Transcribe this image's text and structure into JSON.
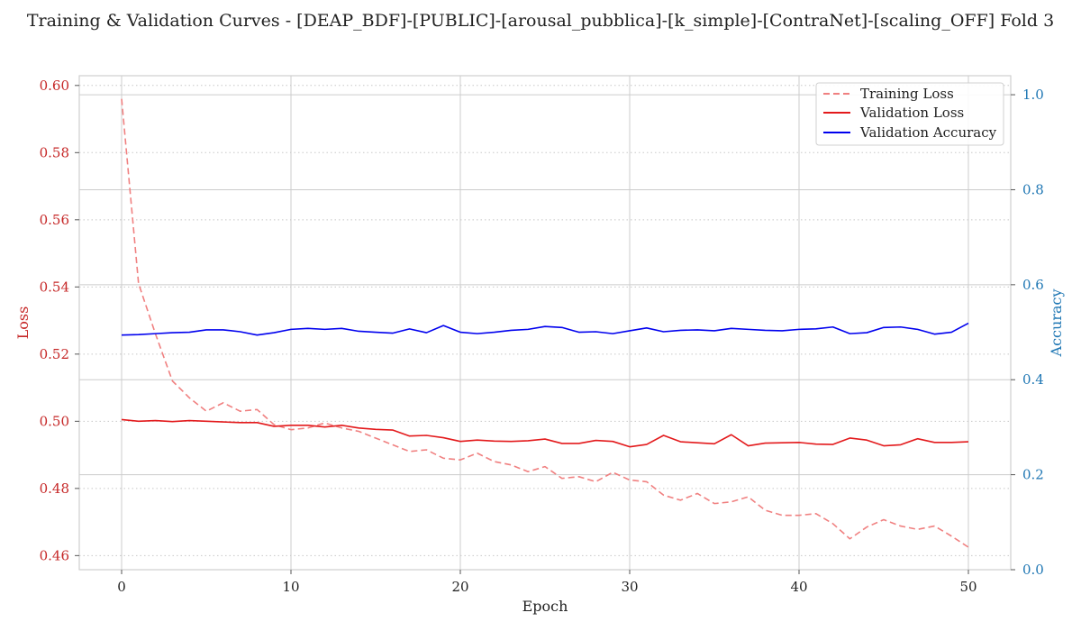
{
  "chart_data": {
    "type": "line",
    "title": "Training & Validation Curves - [DEAP_BDF]-[PUBLIC]-[arousal_pubblica]-[k_simple]-[ContraNet]-[scaling_OFF] Fold 3",
    "xlabel": "Epoch",
    "ylabel_left": "Loss",
    "ylabel_right": "Accuracy",
    "xlim": [
      -2.5,
      52.5
    ],
    "ylim_left": [
      0.4558,
      0.6029
    ],
    "ylim_right": [
      0.0,
      1.04
    ],
    "x_ticks": [
      0,
      10,
      20,
      30,
      40,
      50
    ],
    "y_left_ticks": [
      0.46,
      0.48,
      0.5,
      0.52,
      0.54,
      0.56,
      0.58,
      0.6
    ],
    "y_left_tick_labels": [
      "0.46",
      "0.48",
      "0.50",
      "0.52",
      "0.54",
      "0.56",
      "0.58",
      "0.60"
    ],
    "y_right_ticks": [
      0.0,
      0.2,
      0.4,
      0.6,
      0.8,
      1.0
    ],
    "y_right_tick_labels": [
      "0.0",
      "0.2",
      "0.4",
      "0.6",
      "0.8",
      "1.0"
    ],
    "legend_position": "top-right",
    "grid": true,
    "colors": {
      "training_loss": "#f08080",
      "validation_loss": "#e31a1c",
      "validation_accuracy": "#0000ee",
      "left_axis": "#c62828",
      "right_axis": "#1f77b4"
    },
    "x": [
      0,
      1,
      2,
      3,
      4,
      5,
      6,
      7,
      8,
      9,
      10,
      11,
      12,
      13,
      14,
      15,
      16,
      17,
      18,
      19,
      20,
      21,
      22,
      23,
      24,
      25,
      26,
      27,
      28,
      29,
      30,
      31,
      32,
      33,
      34,
      35,
      36,
      37,
      38,
      39,
      40,
      41,
      42,
      43,
      44,
      45,
      46,
      47,
      48,
      49,
      50
    ],
    "series": [
      {
        "name": "Training Loss",
        "axis": "left",
        "style": "dashed",
        "values": [
          0.596,
          0.541,
          0.526,
          0.512,
          0.507,
          0.503,
          0.5055,
          0.503,
          0.5035,
          0.499,
          0.4975,
          0.498,
          0.4995,
          0.498,
          0.497,
          0.495,
          0.493,
          0.491,
          0.4915,
          0.489,
          0.4885,
          0.4905,
          0.488,
          0.487,
          0.485,
          0.4865,
          0.483,
          0.4835,
          0.482,
          0.4848,
          0.4825,
          0.482,
          0.478,
          0.4765,
          0.4785,
          0.4755,
          0.476,
          0.4775,
          0.4735,
          0.472,
          0.472,
          0.4725,
          0.4695,
          0.465,
          0.4685,
          0.4707,
          0.4688,
          0.4678,
          0.4688,
          0.4658,
          0.4625
        ]
      },
      {
        "name": "Validation Loss",
        "axis": "left",
        "style": "solid",
        "values": [
          0.5005,
          0.5,
          0.5002,
          0.4999,
          0.5002,
          0.5,
          0.4998,
          0.4996,
          0.4996,
          0.4985,
          0.4988,
          0.4988,
          0.4983,
          0.4988,
          0.498,
          0.4976,
          0.4974,
          0.4956,
          0.4958,
          0.4951,
          0.494,
          0.4944,
          0.4941,
          0.494,
          0.4942,
          0.4947,
          0.4934,
          0.4934,
          0.4943,
          0.494,
          0.4924,
          0.4931,
          0.4958,
          0.4939,
          0.4936,
          0.4933,
          0.496,
          0.4927,
          0.4935,
          0.4936,
          0.4937,
          0.4932,
          0.4931,
          0.495,
          0.4944,
          0.4927,
          0.493,
          0.4948,
          0.4937,
          0.4937,
          0.4939
        ]
      },
      {
        "name": "Validation Accuracy",
        "axis": "right",
        "style": "solid",
        "values": [
          0.494,
          0.495,
          0.497,
          0.499,
          0.5,
          0.505,
          0.505,
          0.501,
          0.494,
          0.499,
          0.506,
          0.508,
          0.506,
          0.508,
          0.502,
          0.5,
          0.498,
          0.507,
          0.499,
          0.514,
          0.5,
          0.497,
          0.5,
          0.504,
          0.506,
          0.512,
          0.51,
          0.5,
          0.501,
          0.497,
          0.503,
          0.509,
          0.501,
          0.504,
          0.505,
          0.503,
          0.508,
          0.506,
          0.504,
          0.503,
          0.506,
          0.507,
          0.511,
          0.497,
          0.499,
          0.51,
          0.511,
          0.506,
          0.496,
          0.5,
          0.519
        ]
      }
    ]
  }
}
